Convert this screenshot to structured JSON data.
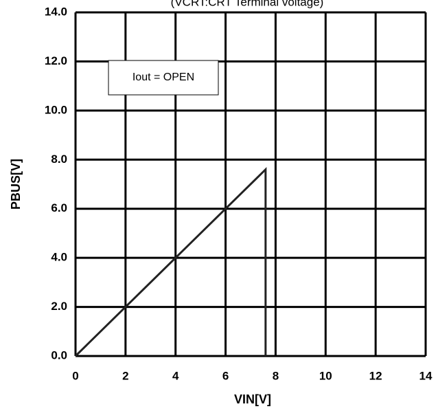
{
  "chart_data": {
    "type": "line",
    "subtitle": "(VCRT:CRT Terminal voltage)",
    "annotation": "Iout = OPEN",
    "x_label": "VIN[V]",
    "y_label": "PBUS[V]",
    "xlim": [
      0,
      14
    ],
    "ylim": [
      0,
      14
    ],
    "xticks": [
      0,
      2,
      4,
      6,
      8,
      10,
      12,
      14
    ],
    "yticks": [
      {
        "value": 0,
        "label": "0.0"
      },
      {
        "value": 2,
        "label": "2.0"
      },
      {
        "value": 4,
        "label": "4.0"
      },
      {
        "value": 6,
        "label": "6.0"
      },
      {
        "value": 8,
        "label": "8.0"
      },
      {
        "value": 10,
        "label": "10.0"
      },
      {
        "value": 12,
        "label": "12.0"
      },
      {
        "value": 14,
        "label": "14.0"
      }
    ],
    "grid": true,
    "series": [
      {
        "color": "#222222",
        "x": [
          0,
          7.6,
          7.6
        ],
        "values": [
          0,
          7.6,
          0
        ]
      }
    ]
  }
}
